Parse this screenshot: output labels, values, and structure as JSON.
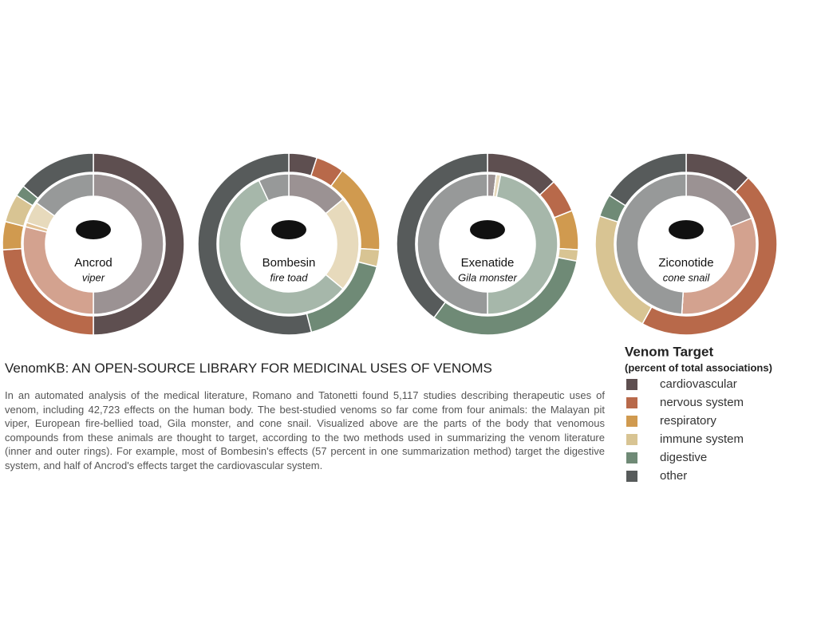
{
  "chart_data": [
    {
      "type": "donut",
      "title": "Ancrod",
      "subtitle": "viper",
      "inner": [
        50,
        29,
        1,
        5,
        0,
        15
      ],
      "outer": [
        50,
        24,
        5,
        5,
        2,
        14
      ]
    },
    {
      "type": "donut",
      "title": "Bombesin",
      "subtitle": "fire toad",
      "inner": [
        14,
        0,
        0,
        22,
        57,
        7
      ],
      "outer": [
        5,
        5,
        16,
        3,
        17,
        54
      ]
    },
    {
      "type": "donut",
      "title": "Exenatide",
      "subtitle": "Gila monster",
      "inner": [
        2,
        0,
        0,
        1,
        47,
        50
      ],
      "outer": [
        13,
        6,
        7,
        2,
        32,
        40
      ]
    },
    {
      "type": "donut",
      "title": "Ziconotide",
      "subtitle": "cone snail",
      "inner": [
        19,
        32,
        0,
        0,
        0,
        49
      ],
      "outer": [
        12,
        46,
        0,
        22,
        4,
        16
      ]
    }
  ],
  "legend": {
    "title": "Venom Target",
    "subtitle": "(percent of total associations)",
    "categories": [
      "cardiovascular",
      "nervous system",
      "respiratory",
      "immune system",
      "digestive",
      "other"
    ],
    "colors": [
      "#5e4f50",
      "#b8694a",
      "#d09a4f",
      "#d8c493",
      "#6f8a76",
      "#575b5b"
    ]
  },
  "article": {
    "title": "VenomKB: AN OPEN-SOURCE LIBRARY FOR MEDICINAL USES OF VENOMS",
    "body": "In an automated analysis of the medical literature, Romano and Tatonetti found 5,117 studies describing therapeutic uses of venom, including 42,723 effects on the human body. The best-studied venoms so far come from four animals: the Malayan pit viper, European fire-bellied toad, Gila monster, and cone snail. Visualized above are the parts of the body that venomous compounds from these animals are thought to target, according to the two methods used in summarizing the venom literature (inner and outer rings). For example, most of Bombesin's effects (57 percent in one summarization method) target the digestive system, and half of Ancrod's effects target the cardiovascular system."
  }
}
